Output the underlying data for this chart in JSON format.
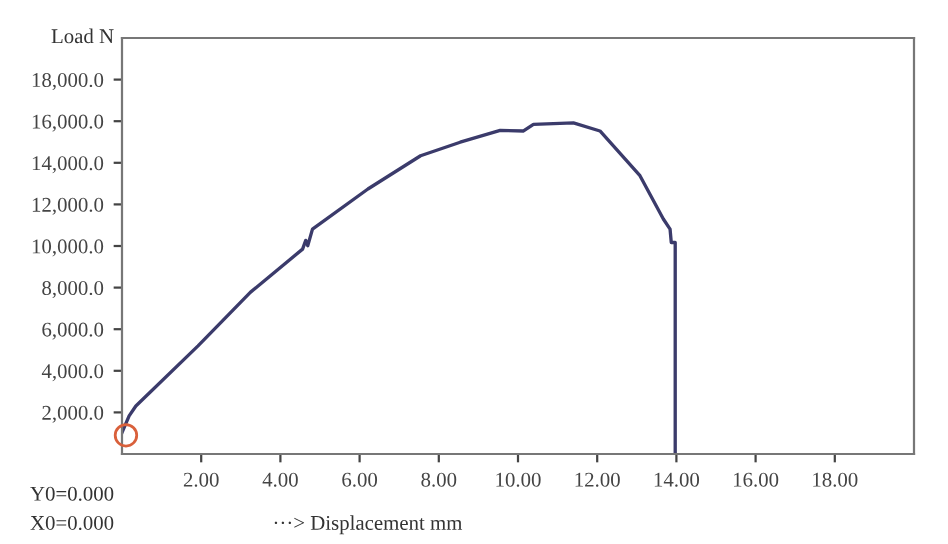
{
  "chart_data": {
    "type": "line",
    "xlabel": "···> Displacement mm",
    "ylabel": "Load N",
    "annotations": [
      "Y0=0.000",
      "X0=0.000"
    ],
    "xlim": [
      0,
      20
    ],
    "ylim": [
      0,
      20000
    ],
    "xticks": [
      {
        "value": 2,
        "label": "2.00"
      },
      {
        "value": 4,
        "label": "4.00"
      },
      {
        "value": 6,
        "label": "6.00"
      },
      {
        "value": 8,
        "label": "8.00"
      },
      {
        "value": 10,
        "label": "10.00"
      },
      {
        "value": 12,
        "label": "12.00"
      },
      {
        "value": 14,
        "label": "14.00"
      },
      {
        "value": 16,
        "label": "16.00"
      },
      {
        "value": 18,
        "label": "18.00"
      }
    ],
    "yticks": [
      {
        "value": 2000,
        "label": "2,000.0"
      },
      {
        "value": 4000,
        "label": "4,000.0"
      },
      {
        "value": 6000,
        "label": "6,000.0"
      },
      {
        "value": 8000,
        "label": "8,000.0"
      },
      {
        "value": 10000,
        "label": "10,000.0"
      },
      {
        "value": 12000,
        "label": "12,000.0"
      },
      {
        "value": 14000,
        "label": "14,000.0"
      },
      {
        "value": 16000,
        "label": "16,000.0"
      },
      {
        "value": 18000,
        "label": "18,000.0"
      }
    ],
    "grid": false,
    "legend": false,
    "series": [
      {
        "color": "#3b3b6b",
        "marker": "none",
        "x": [
          0,
          0.18,
          0.35,
          1.92,
          3.24,
          4.56,
          4.64,
          4.69,
          4.81,
          6.21,
          7.54,
          8.54,
          9.55,
          10.14,
          10.39,
          11.4,
          12.07,
          13.08,
          13.67,
          13.84,
          13.87,
          13.97,
          13.97
        ],
        "values": [
          1030,
          1830,
          2310,
          5200,
          7770,
          9850,
          10270,
          10010,
          10810,
          12740,
          14340,
          14990,
          15560,
          15530,
          15850,
          15920,
          15530,
          13380,
          11300,
          10810,
          10170,
          10170,
          0
        ]
      },
      {
        "type": "scatter",
        "color": "#d9603b",
        "marker": "circle",
        "x": [
          0.1
        ],
        "values": [
          900
        ]
      }
    ]
  }
}
